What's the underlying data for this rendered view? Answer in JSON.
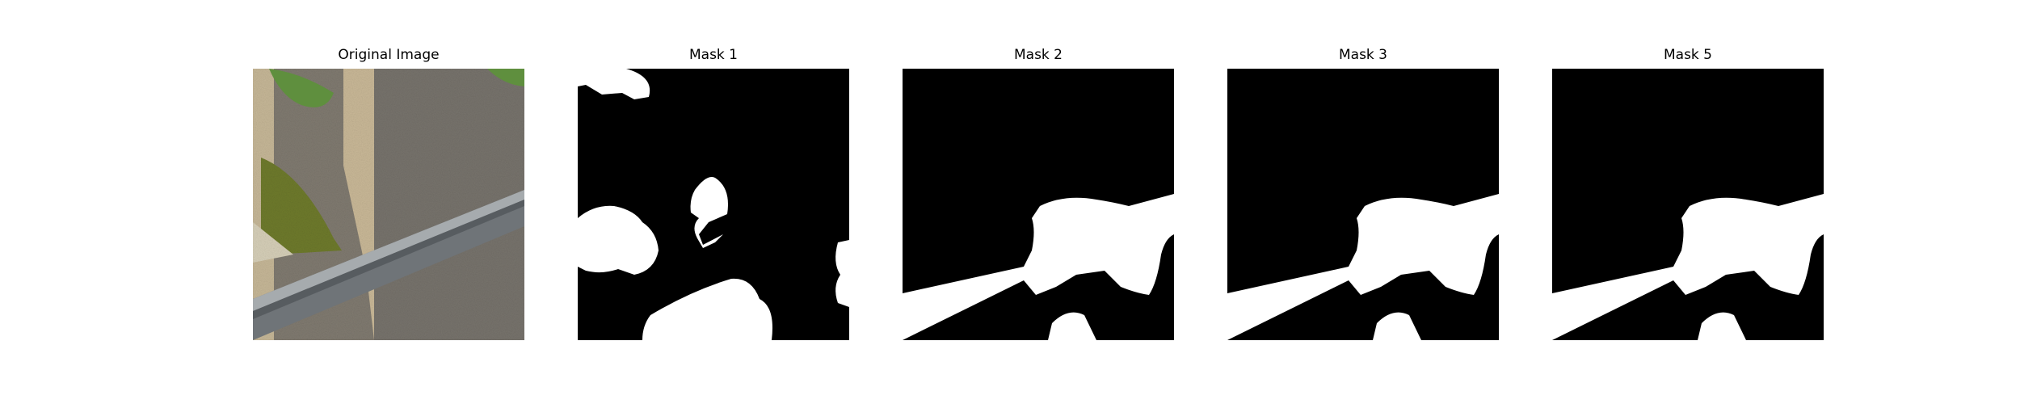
{
  "panels": [
    {
      "title": "Original Image"
    },
    {
      "title": "Mask 1"
    },
    {
      "title": "Mask 2"
    },
    {
      "title": "Mask 3"
    },
    {
      "title": "Mask 5"
    }
  ],
  "colors": {
    "mask_background": "#000000",
    "mask_foreground": "#ffffff",
    "wall": "#7d786e",
    "mortar": "#c8b79a",
    "rail": "#6f7478",
    "rail_highlight": "#a6abae",
    "moss": "#6f7a2e",
    "leaf": "#5f8f3e"
  }
}
